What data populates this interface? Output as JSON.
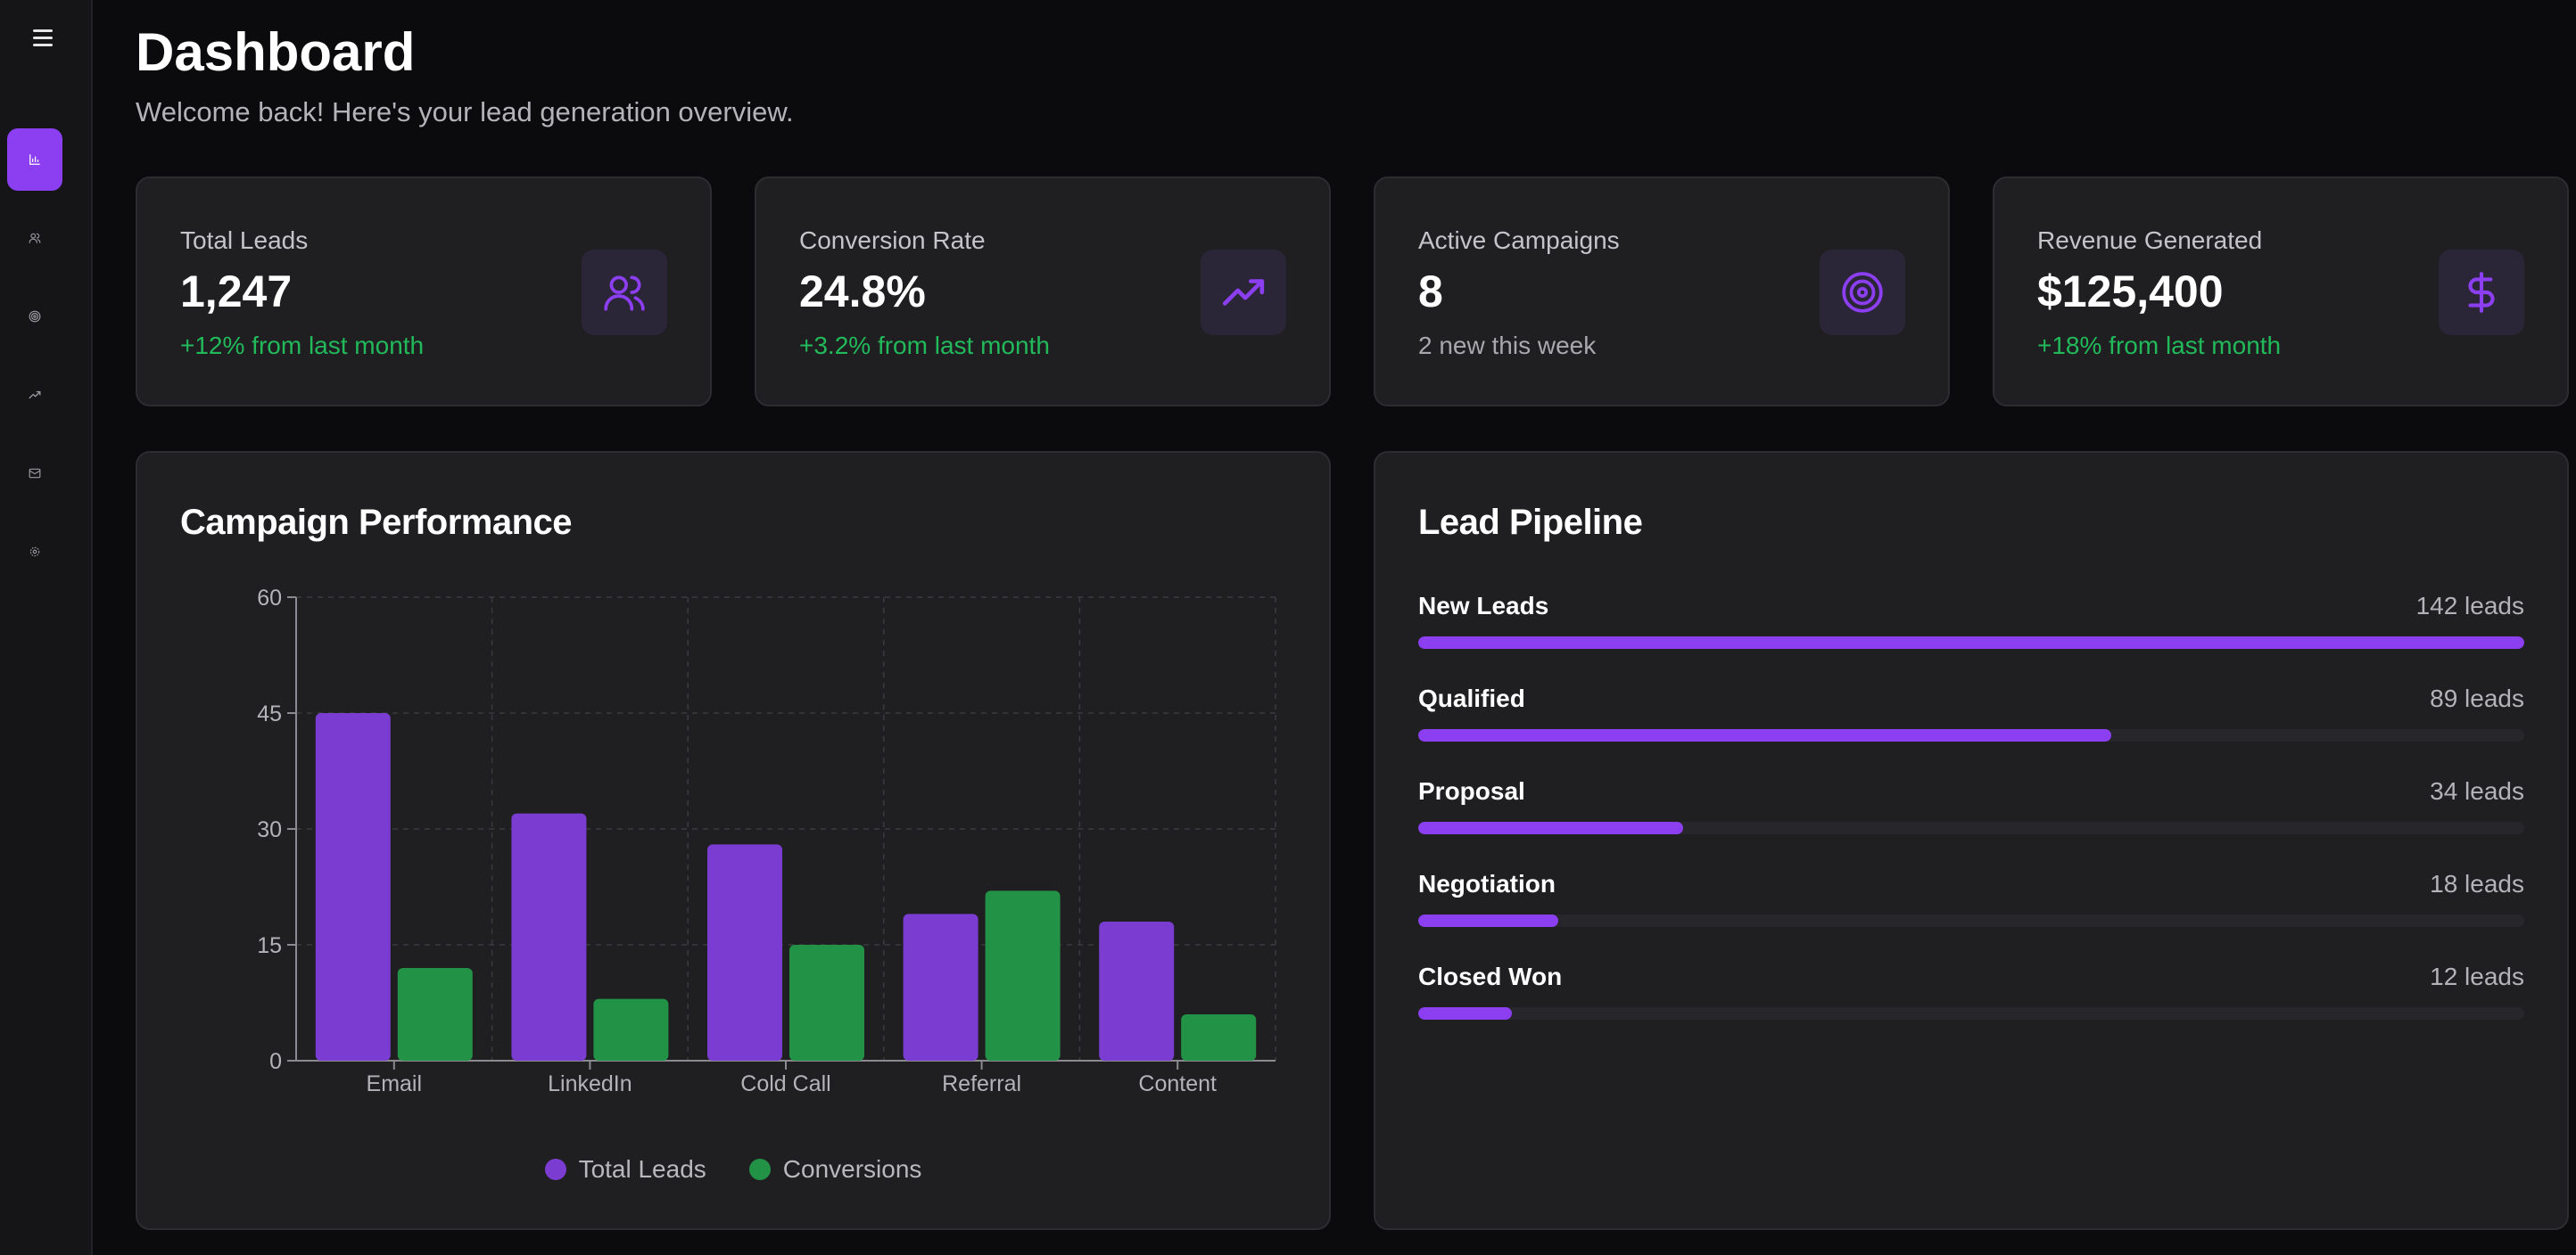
{
  "sidebar": {
    "items": [
      {
        "icon": "bar-chart-icon",
        "active": true
      },
      {
        "icon": "users-icon",
        "active": false
      },
      {
        "icon": "target-icon",
        "active": false
      },
      {
        "icon": "trending-up-icon",
        "active": false
      },
      {
        "icon": "mail-icon",
        "active": false
      },
      {
        "icon": "gear-icon",
        "active": false
      }
    ]
  },
  "header": {
    "title": "Dashboard",
    "subtitle": "Welcome back! Here's your lead generation overview."
  },
  "stats": [
    {
      "label": "Total Leads",
      "value": "1,247",
      "note": "+12% from last month",
      "note_status": "positive",
      "icon": "users-icon"
    },
    {
      "label": "Conversion Rate",
      "value": "24.8%",
      "note": "+3.2% from last month",
      "note_status": "positive",
      "icon": "trending-up-icon"
    },
    {
      "label": "Active Campaigns",
      "value": "8",
      "note": "2 new this week",
      "note_status": "neutral",
      "icon": "target-icon"
    },
    {
      "label": "Revenue Generated",
      "value": "$125,400",
      "note": "+18% from last month",
      "note_status": "positive",
      "icon": "dollar-icon"
    }
  ],
  "campaign": {
    "title": "Campaign Performance"
  },
  "chart_data": {
    "type": "bar",
    "title": "Campaign Performance",
    "categories": [
      "Email",
      "LinkedIn",
      "Cold Call",
      "Referral",
      "Content"
    ],
    "series": [
      {
        "name": "Total Leads",
        "values": [
          45,
          32,
          28,
          19,
          18
        ],
        "color": "#7b3dd1"
      },
      {
        "name": "Conversions",
        "values": [
          12,
          8,
          15,
          22,
          6
        ],
        "color": "#229346"
      }
    ],
    "ylim": [
      0,
      60
    ],
    "yticks": [
      0,
      15,
      30,
      45,
      60
    ],
    "grid": true,
    "legend": "bottom"
  },
  "pipeline": {
    "title": "Lead Pipeline",
    "max": 142,
    "stages": [
      {
        "name": "New Leads",
        "count": 142,
        "label": "142 leads"
      },
      {
        "name": "Qualified",
        "count": 89,
        "label": "89 leads"
      },
      {
        "name": "Proposal",
        "count": 34,
        "label": "34 leads"
      },
      {
        "name": "Negotiation",
        "count": 18,
        "label": "18 leads"
      },
      {
        "name": "Closed Won",
        "count": 12,
        "label": "12 leads"
      }
    ]
  },
  "colors": {
    "accent": "#8b3ff0",
    "positive": "#22b95b",
    "neutral": "#a8a8ad"
  }
}
